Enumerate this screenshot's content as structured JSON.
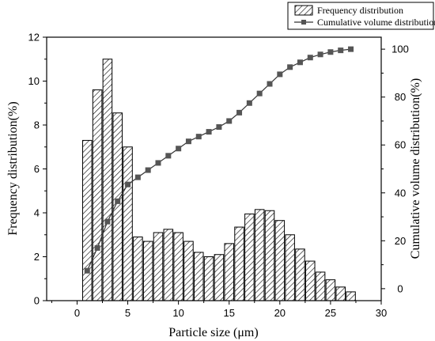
{
  "chart_data": {
    "type": "bar",
    "x_range": [
      -3,
      30
    ],
    "x_ticks": [
      0,
      5,
      10,
      15,
      20,
      25,
      30
    ],
    "y_left_range": [
      0,
      12
    ],
    "y_left_ticks": [
      0,
      2,
      4,
      6,
      8,
      10,
      12
    ],
    "y_right_range": [
      -5,
      105
    ],
    "y_right_ticks": [
      0,
      20,
      40,
      60,
      80,
      100
    ],
    "xlabel": "Particle size (μm)",
    "ylabel_left": "Frequency distribution(%)",
    "ylabel_right": "Cumulative volume distribution(%)",
    "legend_position": "top-right, outside plot",
    "grid": false,
    "series": [
      {
        "name": "Frequency distribution",
        "type": "bar",
        "axis": "left",
        "style": "hatched",
        "x": [
          1,
          2,
          3,
          4,
          5,
          6,
          7,
          8,
          9,
          10,
          11,
          12,
          13,
          14,
          15,
          16,
          17,
          18,
          19,
          20,
          21,
          22,
          23,
          24,
          25,
          26,
          27
        ],
        "values": [
          7.3,
          9.6,
          11.0,
          8.55,
          7.0,
          2.9,
          2.7,
          3.1,
          3.25,
          3.1,
          2.7,
          2.2,
          2.0,
          2.1,
          2.6,
          3.35,
          3.95,
          4.15,
          4.1,
          3.65,
          3.0,
          2.35,
          1.8,
          1.3,
          0.95,
          0.62,
          0.4
        ]
      },
      {
        "name": "Cumulative volume distribution",
        "type": "line",
        "axis": "right",
        "marker": "square",
        "x": [
          1,
          2,
          3,
          4,
          5,
          6,
          7,
          8,
          9,
          10,
          11,
          12,
          13,
          14,
          15,
          16,
          17,
          18,
          19,
          20,
          21,
          22,
          23,
          24,
          25,
          26,
          27
        ],
        "values": [
          7.5,
          17,
          28,
          36.5,
          43.5,
          46.5,
          49.5,
          52.5,
          55.5,
          58.5,
          61.5,
          63.5,
          65.5,
          67.5,
          70,
          73.5,
          77.5,
          81.5,
          85.5,
          89.5,
          92.5,
          94.5,
          96.5,
          97.8,
          98.8,
          99.5,
          100
        ]
      }
    ]
  }
}
